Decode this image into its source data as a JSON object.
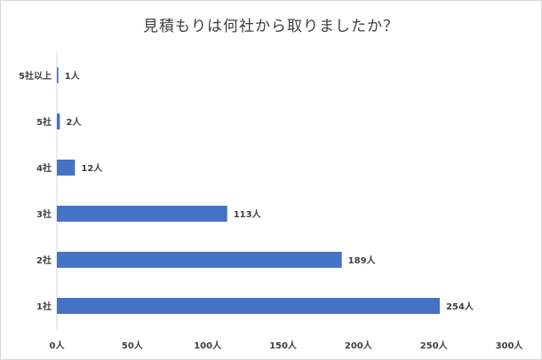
{
  "chart_data": {
    "type": "bar",
    "orientation": "horizontal",
    "title": "見積もりは何社から取りましたか？",
    "categories": [
      "5社以上",
      "5社",
      "4社",
      "3社",
      "2社",
      "1社"
    ],
    "values": [
      1,
      2,
      12,
      113,
      189,
      254
    ],
    "data_labels": [
      "1人",
      "2人",
      "12人",
      "113人",
      "189人",
      "254人"
    ],
    "xlim": [
      0,
      300
    ],
    "x_ticks": [
      0,
      50,
      100,
      150,
      200,
      250,
      300
    ],
    "x_tick_labels": [
      "0人",
      "50人",
      "100人",
      "150人",
      "200人",
      "250人",
      "300人"
    ],
    "grid": false,
    "bar_color": "#4472c4"
  }
}
